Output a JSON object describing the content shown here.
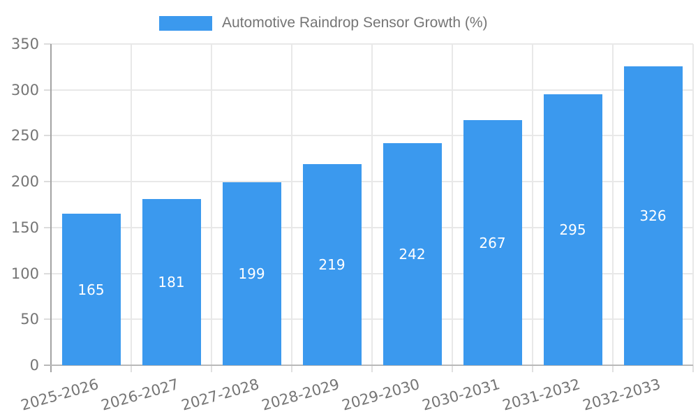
{
  "chart_data": {
    "type": "bar",
    "title": "Automotive Raindrop Sensor Growth (%)",
    "legend": {
      "label": "Automotive Raindrop Sensor Growth (%)",
      "position": "top"
    },
    "categories": [
      "2025-2026",
      "2026-2027",
      "2027-2028",
      "2028-2029",
      "2029-2030",
      "2030-2031",
      "2031-2032",
      "2032-2033"
    ],
    "series": [
      {
        "name": "Automotive Raindrop Sensor Growth (%)",
        "values": [
          165,
          181,
          199,
          219,
          242,
          267,
          295,
          326
        ],
        "color": "#3b99ee"
      }
    ],
    "value_labels": {
      "visible": true,
      "placement": "inside-center",
      "color": "#ffffff"
    },
    "xlabel": "",
    "ylabel": "",
    "ylim": [
      0,
      350
    ],
    "yticks": [
      0,
      50,
      100,
      150,
      200,
      250,
      300,
      350
    ],
    "grid": true,
    "x_tick_rotation_deg": -16,
    "colors": {
      "bar": "#3b99ee",
      "axis_text": "#757575",
      "grid_line": "#e8e8e8",
      "y_axis_line": "#a3a3a3",
      "x_axis_line": "#b8b8b8",
      "y_tick_line": "#dcdcdc",
      "x_tick_line": "#e0e0e0",
      "background": "#ffffff"
    }
  }
}
